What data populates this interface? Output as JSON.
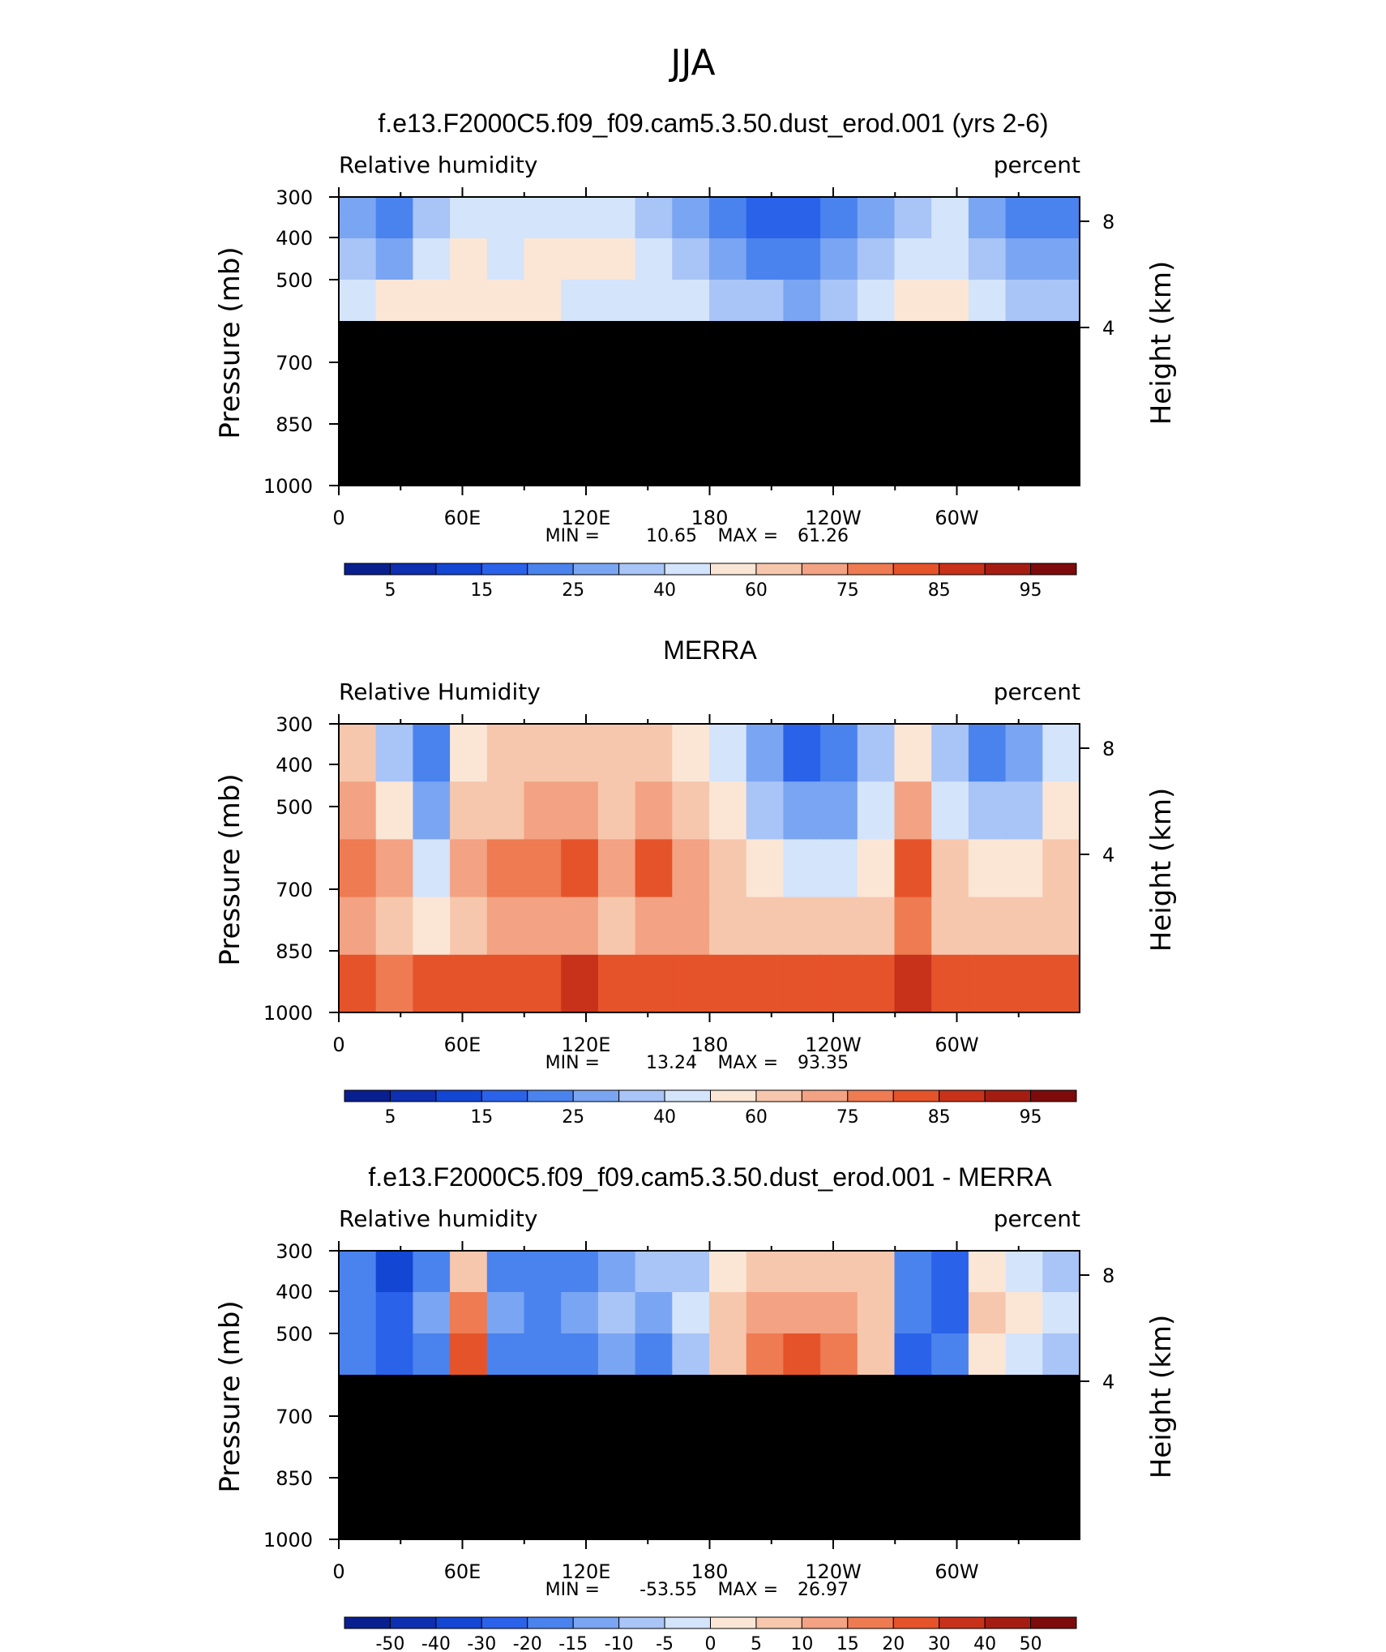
{
  "figure_title": "JJA",
  "chart_data": [
    {
      "type": "heatmap",
      "title": "f.e13.F2000C5.f09_f09.cam5.3.50.dust_erod.001 (yrs 2-6)",
      "variable": "Relative humidity",
      "units": "percent",
      "ylabel_left": "Pressure (mb)",
      "ylabel_right": "Height (km)",
      "x_ticks": [
        "0",
        "60E",
        "120E",
        "180",
        "120W",
        "60W"
      ],
      "y_ticks": [
        "300",
        "400",
        "500",
        "700",
        "850",
        "1000"
      ],
      "y2_ticks": [
        "8",
        "4"
      ],
      "min_label": "MIN =",
      "min_value": "10.65",
      "max_label": "MAX =",
      "max_value": "61.26",
      "colorbar_labels": [
        "5",
        "15",
        "25",
        "40",
        "60",
        "75",
        "85",
        "95"
      ],
      "missing_below_mb": 600
    },
    {
      "type": "heatmap",
      "title": "MERRA",
      "variable": "Relative Humidity",
      "units": "percent",
      "ylabel_left": "Pressure (mb)",
      "ylabel_right": "Height (km)",
      "x_ticks": [
        "0",
        "60E",
        "120E",
        "180",
        "120W",
        "60W"
      ],
      "y_ticks": [
        "300",
        "400",
        "500",
        "700",
        "850",
        "1000"
      ],
      "y2_ticks": [
        "8",
        "4"
      ],
      "min_label": "MIN =",
      "min_value": "13.24",
      "max_label": "MAX =",
      "max_value": "93.35",
      "colorbar_labels": [
        "5",
        "15",
        "25",
        "40",
        "60",
        "75",
        "85",
        "95"
      ]
    },
    {
      "type": "heatmap",
      "title": "f.e13.F2000C5.f09_f09.cam5.3.50.dust_erod.001 - MERRA",
      "variable": "Relative humidity",
      "units": "percent",
      "ylabel_left": "Pressure (mb)",
      "ylabel_right": "Height (km)",
      "x_ticks": [
        "0",
        "60E",
        "120E",
        "180",
        "120W",
        "60W"
      ],
      "y_ticks": [
        "300",
        "400",
        "500",
        "700",
        "850",
        "1000"
      ],
      "y2_ticks": [
        "8",
        "4"
      ],
      "min_label": "MIN =",
      "min_value": "-53.55",
      "max_label": "MAX =",
      "max_value": "26.97",
      "colorbar_labels": [
        "-50",
        "-40",
        "-30",
        "-20",
        "-15",
        "-10",
        "-5",
        "0",
        "5",
        "10",
        "15",
        "20",
        "30",
        "40",
        "50"
      ],
      "missing_below_mb": 600
    }
  ],
  "palette": [
    "#0a1f8f",
    "#0d2fb0",
    "#1446d4",
    "#2a62ea",
    "#4a83ee",
    "#7aa5f2",
    "#a9c4f6",
    "#d4e4fb",
    "#fbe6d6",
    "#f7c7ad",
    "#f3a283",
    "#ee7b52",
    "#e5532a",
    "#c8321a",
    "#a51d12",
    "#7e0b0b"
  ]
}
